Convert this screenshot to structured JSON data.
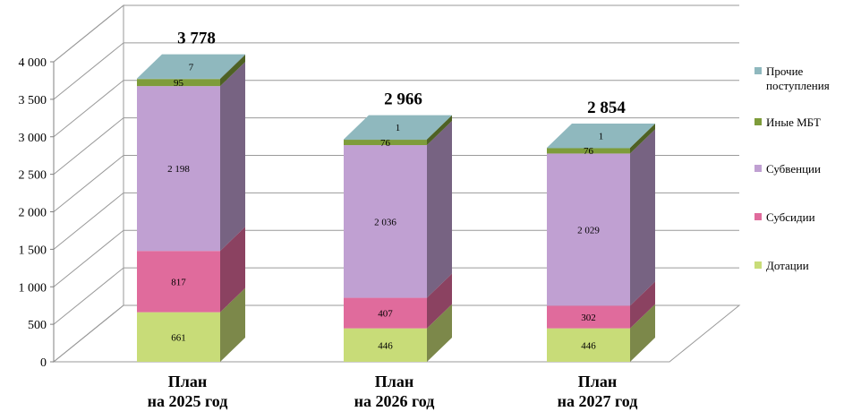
{
  "chart_data": {
    "type": "bar",
    "stacked": true,
    "three_d": true,
    "categories": [
      [
        "План",
        "на 2025 год"
      ],
      [
        "План",
        "на 2026 год"
      ],
      [
        "План",
        "на 2027 год"
      ]
    ],
    "series": [
      {
        "name": "Дотации",
        "values": [
          661,
          446,
          446
        ],
        "labels": [
          "661",
          "446",
          "446"
        ],
        "color": "#c8dc78"
      },
      {
        "name": "Субсидии",
        "values": [
          817,
          407,
          302
        ],
        "labels": [
          "817",
          "407",
          "302"
        ],
        "color": "#e06b9c"
      },
      {
        "name": "Субвенции",
        "values": [
          2198,
          2036,
          2029
        ],
        "labels": [
          "2 198",
          "2 036",
          "2 029"
        ],
        "color": "#c0a0d2"
      },
      {
        "name": "Иные МБТ",
        "values": [
          95,
          76,
          76
        ],
        "labels": [
          "95",
          "76",
          "76"
        ],
        "color": "#7e9c3a"
      },
      {
        "name": "Прочие поступления",
        "legend_lines": [
          "Прочие",
          "поступления"
        ],
        "values": [
          7,
          1,
          1
        ],
        "labels": [
          "7",
          "1",
          "1"
        ],
        "color": "#8fb8be"
      }
    ],
    "totals": [
      "3 778",
      "2 966",
      "2 854"
    ],
    "y_ticks": [
      "0",
      "500",
      "1 000",
      "1 500",
      "2 000",
      "2 500",
      "3 000",
      "3 500",
      "4 000"
    ],
    "ylim": [
      0,
      4000
    ],
    "grid": true,
    "legend_position": "right"
  }
}
